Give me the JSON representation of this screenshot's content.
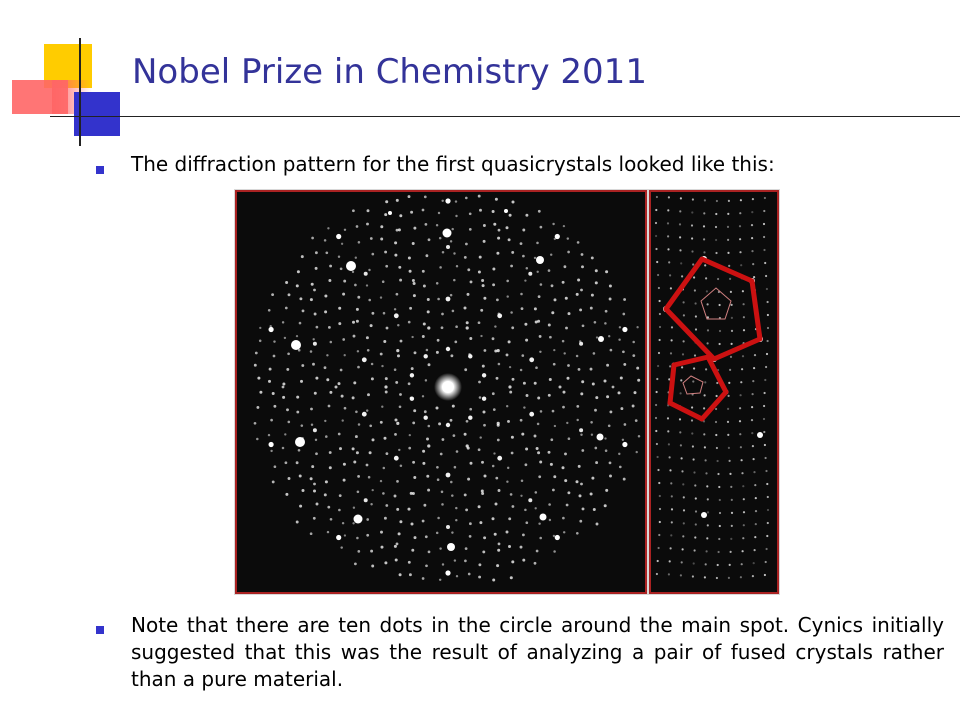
{
  "slide": {
    "title": "Nobel Prize in Chemistry 2011",
    "bullets": [
      {
        "text": "The diffraction pattern for the first quasicrystals looked like this:"
      },
      {
        "text": "Note that there are ten dots in the circle around the main spot. Cynics initially suggested that this was the result of analyzing a pair of fused crystals rather than a pure material."
      }
    ]
  },
  "colors": {
    "title": "#333399",
    "bullet": "#3333cc",
    "deco_yellow": "#ffcc00",
    "deco_red": "#ff6666",
    "deco_blue": "#3333cc",
    "pattern_background": "#0b0b0b",
    "pattern_border": "#aa2222",
    "pentagon_outline": "#cc1111",
    "spot": "#ffffff"
  },
  "icons": {
    "bullet": "square-bullet-icon"
  }
}
